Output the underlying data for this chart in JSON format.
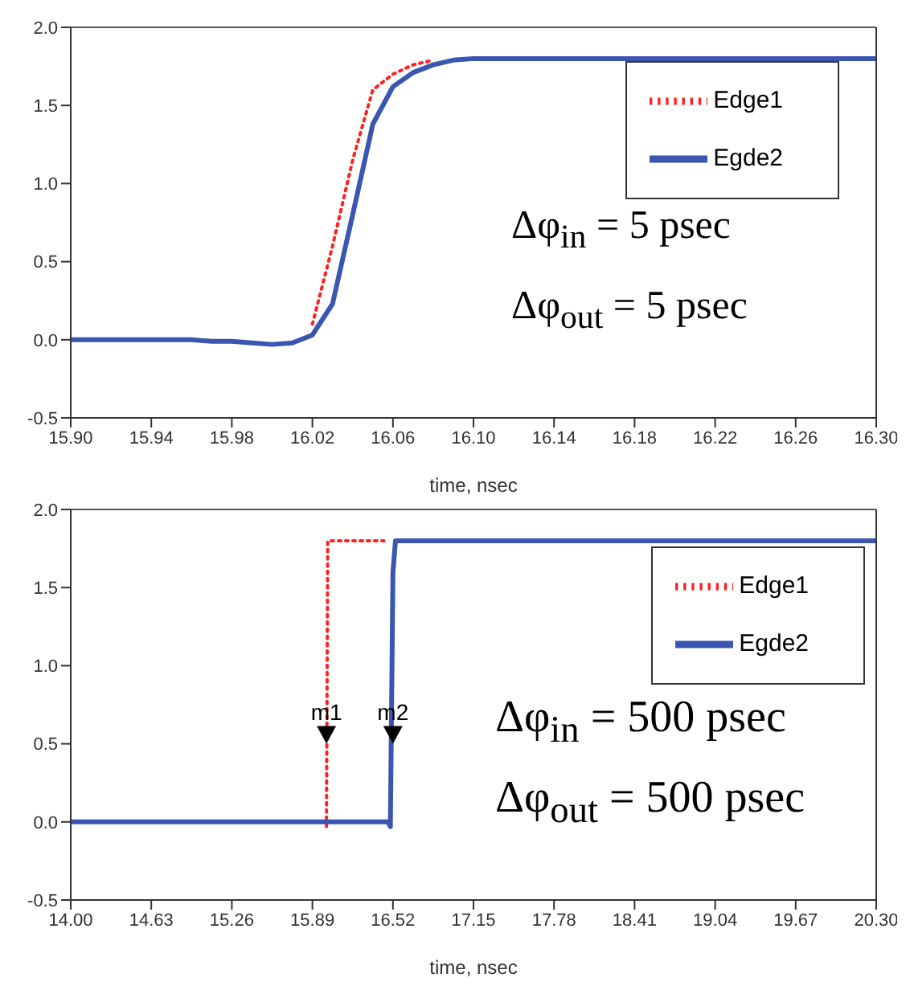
{
  "chart_data": [
    {
      "type": "line",
      "xlabel": "time, nsec",
      "legend": "top right",
      "xlim": [
        15.9,
        16.3
      ],
      "xticks": [
        {
          "value": 15.9,
          "label": "15.90"
        },
        {
          "value": 15.94,
          "label": "15.94"
        },
        {
          "value": 15.98,
          "label": "15.98"
        },
        {
          "value": 16.02,
          "label": "16.02"
        },
        {
          "value": 16.06,
          "label": "16.06"
        },
        {
          "value": 16.1,
          "label": "16.10"
        },
        {
          "value": 16.14,
          "label": "16.14"
        },
        {
          "value": 16.18,
          "label": "16.18"
        },
        {
          "value": 16.22,
          "label": "16.22"
        },
        {
          "value": 16.26,
          "label": "16.26"
        },
        {
          "value": 16.3,
          "label": "16.30"
        }
      ],
      "ylim": [
        -0.5,
        2
      ],
      "yticks": [
        {
          "value": -0.5,
          "label": "-0.5"
        },
        {
          "value": 0,
          "label": "0.0"
        },
        {
          "value": 0.5,
          "label": "0.5"
        },
        {
          "value": 1,
          "label": "1.0"
        },
        {
          "value": 1.5,
          "label": "1.5"
        },
        {
          "value": 2,
          "label": "2.0"
        }
      ],
      "series": [
        {
          "name": "Edge1",
          "color": "#ff2020",
          "line_style": "dotted",
          "x": [
            16.02,
            16.03,
            16.04,
            16.05,
            16.06,
            16.07,
            16.08
          ],
          "values": [
            0.1,
            0.6,
            1.15,
            1.6,
            1.7,
            1.76,
            1.79
          ]
        },
        {
          "name": "Egde2",
          "color": "#3a56b0",
          "line_style": "solid",
          "x": [
            15.9,
            15.96,
            15.97,
            15.98,
            15.99,
            16.0,
            16.01,
            16.02,
            16.03,
            16.04,
            16.05,
            16.06,
            16.07,
            16.08,
            16.09,
            16.1,
            16.3
          ],
          "values": [
            0,
            0,
            -0.01,
            -0.01,
            -0.02,
            -0.03,
            -0.02,
            0.03,
            0.23,
            0.8,
            1.38,
            1.62,
            1.71,
            1.76,
            1.79,
            1.8,
            1.8
          ]
        }
      ],
      "annotations": [
        "Δφ$_{in}$ = 5 psec",
        "Δφ$_{out}$ = 5 psec"
      ]
    },
    {
      "type": "line",
      "xlabel": "time, nsec",
      "legend": "top right",
      "xlim": [
        14,
        20.3
      ],
      "xticks": [
        {
          "value": 14,
          "label": "14.00"
        },
        {
          "value": 14.63,
          "label": "14.63"
        },
        {
          "value": 15.26,
          "label": "15.26"
        },
        {
          "value": 15.89,
          "label": "15.89"
        },
        {
          "value": 16.52,
          "label": "16.52"
        },
        {
          "value": 17.15,
          "label": "17.15"
        },
        {
          "value": 17.78,
          "label": "17.78"
        },
        {
          "value": 18.41,
          "label": "18.41"
        },
        {
          "value": 19.04,
          "label": "19.04"
        },
        {
          "value": 19.67,
          "label": "19.67"
        },
        {
          "value": 20.3,
          "label": "20.30"
        }
      ],
      "ylim": [
        -0.5,
        2
      ],
      "yticks": [
        {
          "value": -0.5,
          "label": "-0.5"
        },
        {
          "value": 0,
          "label": "0.0"
        },
        {
          "value": 0.5,
          "label": "0.5"
        },
        {
          "value": 1,
          "label": "1.0"
        },
        {
          "value": 1.5,
          "label": "1.5"
        },
        {
          "value": 2,
          "label": "2.0"
        }
      ],
      "series": [
        {
          "name": "Edge1",
          "color": "#ff2020",
          "line_style": "dotted",
          "x": [
            16.0,
            16.01,
            16.45
          ],
          "values": [
            -0.03,
            1.8,
            1.8
          ]
        },
        {
          "name": "Egde2",
          "color": "#3a56b0",
          "line_style": "solid",
          "x": [
            14.0,
            16.48,
            16.5,
            16.52,
            16.54,
            20.3
          ],
          "values": [
            0,
            0,
            -0.03,
            1.6,
            1.8,
            1.8
          ]
        }
      ],
      "annotations": [
        {
          "text": "m1",
          "x": 16.0,
          "y": 0.5
        },
        {
          "text": "m2",
          "x": 16.52,
          "y": 0.5
        },
        "Δφ$_{in}$ = 500 psec",
        "Δφ$_{out}$ = 500 psec"
      ]
    }
  ]
}
